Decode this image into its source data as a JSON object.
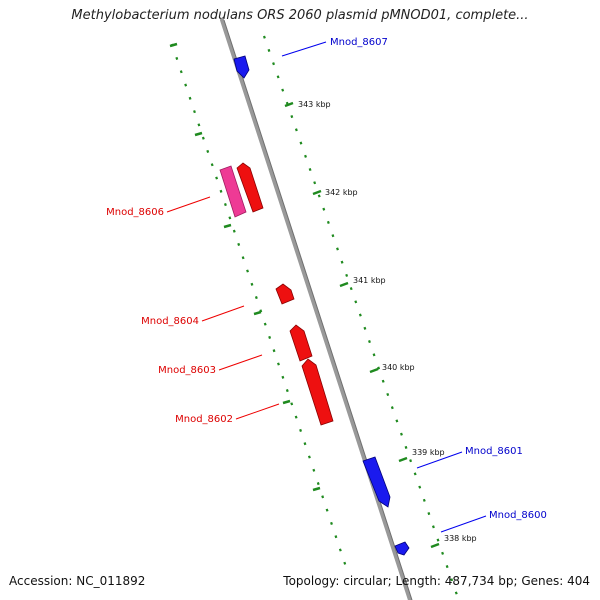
{
  "title": "Methylobacterium nodulans ORS 2060 plasmid pMNOD01, complete...",
  "accession_text": "Accession: NC_011892",
  "summary_text": "Topology: circular; Length: 487,734 bp; Genes: 404",
  "colors": {
    "backbone": "#888888",
    "ticks": "#1f8a1f",
    "forward_gene": "#0000ee",
    "reverse_gene": "#ee0000",
    "pseudo_gene": "#e8308c"
  },
  "scale_ticks": [
    {
      "label": "343 kbp"
    },
    {
      "label": "342 kbp"
    },
    {
      "label": "341 kbp"
    },
    {
      "label": "340 kbp"
    },
    {
      "label": "339 kbp"
    },
    {
      "label": "338 kbp"
    }
  ],
  "genes": [
    {
      "label": "Mnod_8607",
      "strand": "forward"
    },
    {
      "label": "Mnod_8606",
      "strand": "reverse"
    },
    {
      "label": "Mnod_8604",
      "strand": "reverse"
    },
    {
      "label": "Mnod_8603",
      "strand": "reverse"
    },
    {
      "label": "Mnod_8602",
      "strand": "reverse"
    },
    {
      "label": "Mnod_8601",
      "strand": "forward"
    },
    {
      "label": "Mnod_8600",
      "strand": "forward"
    }
  ]
}
